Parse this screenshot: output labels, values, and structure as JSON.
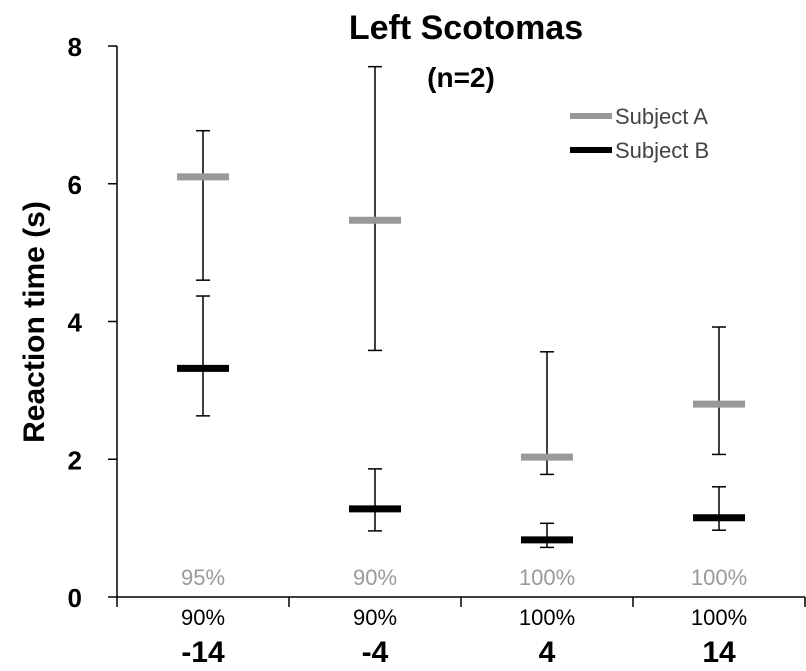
{
  "chart_data": {
    "type": "scatter",
    "title": "Left Scotomas",
    "subtitle": "(n=2)",
    "xlabel": "",
    "ylabel": "Reaction time (s)",
    "ylim": [
      0,
      8
    ],
    "yticks": [
      "0",
      "2",
      "4",
      "6",
      "8"
    ],
    "categories": [
      "-14",
      "-4",
      "4",
      "14"
    ],
    "grid": false,
    "legend_position": "top-right",
    "series": [
      {
        "name": "Subject A",
        "color": "#999999",
        "values": [
          6.1,
          5.47,
          2.03,
          2.8
        ],
        "err_low": [
          4.6,
          3.58,
          1.78,
          2.07
        ],
        "err_high": [
          6.77,
          7.7,
          3.56,
          3.92
        ],
        "accuracy": [
          "95%",
          "90%",
          "100%",
          "100%"
        ]
      },
      {
        "name": "Subject B",
        "color": "#000000",
        "values": [
          3.32,
          1.28,
          0.83,
          1.15
        ],
        "err_low": [
          2.63,
          0.96,
          0.72,
          0.97
        ],
        "err_high": [
          4.37,
          1.86,
          1.07,
          1.6
        ],
        "accuracy": [
          "90%",
          "90%",
          "100%",
          "100%"
        ]
      }
    ]
  }
}
